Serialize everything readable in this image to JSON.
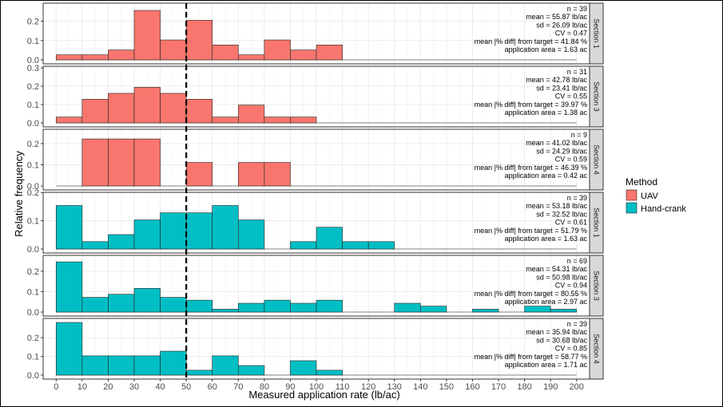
{
  "chart_data": {
    "type": "bar",
    "xlabel": "Measured application rate (lb/ac)",
    "ylabel": "Relative frequency",
    "xlim": [
      -5,
      205
    ],
    "x_ticks": [
      0,
      10,
      20,
      30,
      40,
      50,
      60,
      70,
      80,
      90,
      100,
      110,
      120,
      130,
      140,
      150,
      160,
      170,
      180,
      190,
      200
    ],
    "bin_width": 10,
    "target_line_x": 50,
    "legend": {
      "title": "Method",
      "entries": [
        {
          "label": "UAV",
          "color": "#F8766D"
        },
        {
          "label": "Hand-crank",
          "color": "#00BFC4"
        }
      ]
    },
    "panels": [
      {
        "strip": "Section 1",
        "method": "UAV",
        "y_ticks": [
          "0.0",
          "0.1",
          "0.2"
        ],
        "ymax": 0.285,
        "bins": [
          {
            "x": 0,
            "y": 0.026
          },
          {
            "x": 10,
            "y": 0.026
          },
          {
            "x": 20,
            "y": 0.051
          },
          {
            "x": 30,
            "y": 0.256
          },
          {
            "x": 40,
            "y": 0.103
          },
          {
            "x": 50,
            "y": 0.205
          },
          {
            "x": 60,
            "y": 0.077
          },
          {
            "x": 70,
            "y": 0.026
          },
          {
            "x": 80,
            "y": 0.103
          },
          {
            "x": 90,
            "y": 0.051
          },
          {
            "x": 100,
            "y": 0.077
          }
        ],
        "stats": [
          "n = 39",
          "mean = 55.87 lb/ac",
          "sd = 26.09 lb/ac",
          "CV = 0.47",
          "mean |% diff| from target =  41.84 %",
          "application area =  1.63 ac"
        ]
      },
      {
        "strip": "Section 3",
        "method": "UAV",
        "y_ticks": [
          "0.0",
          "0.1",
          "0.2",
          "0.3"
        ],
        "ymax": 0.3,
        "bins": [
          {
            "x": 0,
            "y": 0.032
          },
          {
            "x": 10,
            "y": 0.129
          },
          {
            "x": 20,
            "y": 0.161
          },
          {
            "x": 30,
            "y": 0.194
          },
          {
            "x": 40,
            "y": 0.161
          },
          {
            "x": 50,
            "y": 0.129
          },
          {
            "x": 60,
            "y": 0.032
          },
          {
            "x": 70,
            "y": 0.097
          },
          {
            "x": 80,
            "y": 0.032
          },
          {
            "x": 90,
            "y": 0.032
          }
        ],
        "stats": [
          "n = 31",
          "mean = 42.78 lb/ac",
          "sd = 23.41 lb/ac",
          "CV = 0.55",
          "mean |% diff| from target =  39.97 %",
          "application area =  1.38 ac"
        ]
      },
      {
        "strip": "Section 4",
        "method": "UAV",
        "y_ticks": [
          "0.0",
          "0.1",
          "0.2"
        ],
        "ymax": 0.26,
        "bins": [
          {
            "x": 10,
            "y": 0.222
          },
          {
            "x": 20,
            "y": 0.222
          },
          {
            "x": 30,
            "y": 0.222
          },
          {
            "x": 50,
            "y": 0.111
          },
          {
            "x": 70,
            "y": 0.111
          },
          {
            "x": 80,
            "y": 0.111
          }
        ],
        "stats": [
          "n = 9",
          "mean = 41.02 lb/ac",
          "sd = 24.29 lb/ac",
          "CV = 0.59",
          "mean |% diff| from target =  46.39 %",
          "application area =  0.42 ac"
        ]
      },
      {
        "strip": "Section 1",
        "method": "Hand-crank",
        "y_ticks": [
          "0.0",
          "0.1",
          "0.2"
        ],
        "ymax": 0.195,
        "bins": [
          {
            "x": 0,
            "y": 0.154
          },
          {
            "x": 10,
            "y": 0.026
          },
          {
            "x": 20,
            "y": 0.051
          },
          {
            "x": 30,
            "y": 0.103
          },
          {
            "x": 40,
            "y": 0.128
          },
          {
            "x": 50,
            "y": 0.128
          },
          {
            "x": 60,
            "y": 0.154
          },
          {
            "x": 70,
            "y": 0.103
          },
          {
            "x": 90,
            "y": 0.026
          },
          {
            "x": 100,
            "y": 0.077
          },
          {
            "x": 110,
            "y": 0.026
          },
          {
            "x": 120,
            "y": 0.026
          }
        ],
        "stats": [
          "n = 39",
          "mean = 53.18 lb/ac",
          "sd = 32.52 lb/ac",
          "CV = 0.61",
          "mean |% diff| from target =  51.79 %",
          "application area =  1.63 ac"
        ]
      },
      {
        "strip": "Section 3",
        "method": "Hand-crank",
        "y_ticks": [
          "0.0",
          "0.1",
          "0.2"
        ],
        "ymax": 0.27,
        "bins": [
          {
            "x": 0,
            "y": 0.246
          },
          {
            "x": 10,
            "y": 0.072
          },
          {
            "x": 20,
            "y": 0.087
          },
          {
            "x": 30,
            "y": 0.116
          },
          {
            "x": 40,
            "y": 0.072
          },
          {
            "x": 50,
            "y": 0.058
          },
          {
            "x": 60,
            "y": 0.014
          },
          {
            "x": 70,
            "y": 0.043
          },
          {
            "x": 80,
            "y": 0.058
          },
          {
            "x": 90,
            "y": 0.043
          },
          {
            "x": 100,
            "y": 0.058
          },
          {
            "x": 130,
            "y": 0.043
          },
          {
            "x": 140,
            "y": 0.029
          },
          {
            "x": 160,
            "y": 0.014
          },
          {
            "x": 180,
            "y": 0.029
          },
          {
            "x": 190,
            "y": 0.014
          }
        ],
        "stats": [
          "n = 69",
          "mean = 54.31 lb/ac",
          "sd = 50.98 lb/ac",
          "CV = 0.94",
          "mean |% diff| from target =  80.55 %",
          "application area =  2.97 ac"
        ]
      },
      {
        "strip": "Section 4",
        "method": "Hand-crank",
        "y_ticks": [
          "0.0",
          "0.1",
          "0.2"
        ],
        "ymax": 0.295,
        "bins": [
          {
            "x": 0,
            "y": 0.282
          },
          {
            "x": 10,
            "y": 0.103
          },
          {
            "x": 20,
            "y": 0.103
          },
          {
            "x": 30,
            "y": 0.103
          },
          {
            "x": 40,
            "y": 0.128
          },
          {
            "x": 50,
            "y": 0.026
          },
          {
            "x": 60,
            "y": 0.103
          },
          {
            "x": 70,
            "y": 0.051
          },
          {
            "x": 90,
            "y": 0.077
          },
          {
            "x": 100,
            "y": 0.026
          }
        ],
        "stats": [
          "n = 39",
          "mean = 35.94 lb/ac",
          "sd = 30.68 lb/ac",
          "CV = 0.85",
          "mean |% diff| from target =  58.77 %",
          "application area =  1.71 ac"
        ]
      }
    ]
  }
}
